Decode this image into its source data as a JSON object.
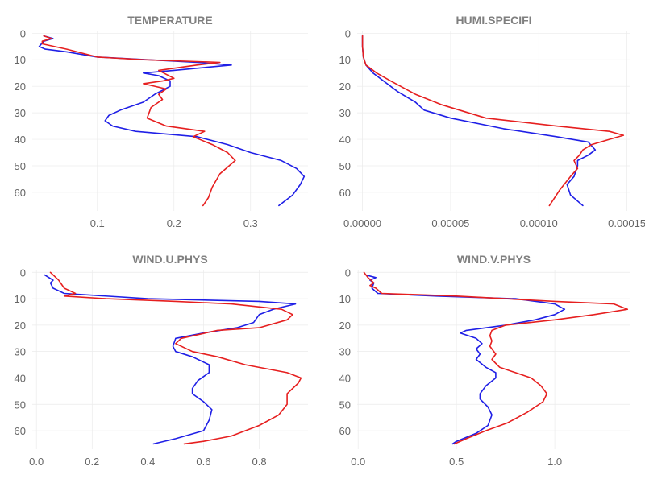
{
  "colors": {
    "series_a": "#1f1fe6",
    "series_b": "#e61f1f",
    "grid": "#ebebeb",
    "text": "#7f7f7f"
  },
  "chart_data": [
    {
      "type": "line",
      "title": "TEMPERATURE",
      "xlabel": "",
      "ylabel": "",
      "y_axis_reversed": true,
      "xlim": [
        0.015,
        0.375
      ],
      "ylim": [
        -1,
        67
      ],
      "x_ticks": [
        0.1,
        0.2,
        0.3
      ],
      "x_tick_labels": [
        "0.1",
        "0.2",
        "0.3"
      ],
      "y_ticks": [
        0,
        10,
        20,
        30,
        40,
        50,
        60
      ],
      "grid": true,
      "series": [
        {
          "color": "#1f1fe6",
          "points": [
            [
              0.03,
              1
            ],
            [
              0.042,
              2
            ],
            [
              0.03,
              3
            ],
            [
              0.024,
              5
            ],
            [
              0.032,
              6
            ],
            [
              0.06,
              7
            ],
            [
              0.1,
              9
            ],
            [
              0.23,
              11
            ],
            [
              0.275,
              12
            ],
            [
              0.2,
              14
            ],
            [
              0.16,
              15
            ],
            [
              0.18,
              16
            ],
            [
              0.195,
              18
            ],
            [
              0.195,
              20
            ],
            [
              0.175,
              23
            ],
            [
              0.16,
              26
            ],
            [
              0.13,
              29
            ],
            [
              0.115,
              31
            ],
            [
              0.11,
              33
            ],
            [
              0.12,
              35
            ],
            [
              0.15,
              37
            ],
            [
              0.23,
              39
            ],
            [
              0.27,
              42
            ],
            [
              0.3,
              45
            ],
            [
              0.34,
              48
            ],
            [
              0.36,
              51
            ],
            [
              0.37,
              54
            ],
            [
              0.365,
              57
            ],
            [
              0.355,
              61
            ],
            [
              0.337,
              65
            ]
          ]
        },
        {
          "color": "#e61f1f",
          "points": [
            [
              0.03,
              1
            ],
            [
              0.04,
              2
            ],
            [
              0.028,
              3
            ],
            [
              0.028,
              4
            ],
            [
              0.06,
              6
            ],
            [
              0.1,
              9
            ],
            [
              0.16,
              10
            ],
            [
              0.26,
              11
            ],
            [
              0.23,
              12
            ],
            [
              0.18,
              14
            ],
            [
              0.2,
              17
            ],
            [
              0.185,
              18
            ],
            [
              0.16,
              19
            ],
            [
              0.19,
              21
            ],
            [
              0.18,
              23
            ],
            [
              0.185,
              25
            ],
            [
              0.17,
              28
            ],
            [
              0.165,
              32
            ],
            [
              0.19,
              35
            ],
            [
              0.24,
              37
            ],
            [
              0.225,
              39
            ],
            [
              0.25,
              42
            ],
            [
              0.27,
              45
            ],
            [
              0.28,
              48
            ],
            [
              0.26,
              53
            ],
            [
              0.25,
              58
            ],
            [
              0.245,
              62
            ],
            [
              0.238,
              65
            ]
          ]
        }
      ]
    },
    {
      "type": "line",
      "title": "HUMI.SPECIFI",
      "xlabel": "",
      "ylabel": "",
      "y_axis_reversed": true,
      "xlim": [
        -3e-06,
        0.000152
      ],
      "ylim": [
        -1,
        67
      ],
      "x_ticks": [
        0,
        5e-05,
        0.0001,
        0.00015
      ],
      "x_tick_labels": [
        "0.00000",
        "0.00005",
        "0.00010",
        "0.00015"
      ],
      "y_ticks": [
        0,
        10,
        20,
        30,
        40,
        50,
        60
      ],
      "grid": true,
      "series": [
        {
          "color": "#1f1fe6",
          "points": [
            [
              0,
              1
            ],
            [
              0,
              5
            ],
            [
              5e-07,
              9
            ],
            [
              2e-06,
              12
            ],
            [
              6e-06,
              15
            ],
            [
              1.2e-05,
              18
            ],
            [
              2e-05,
              22
            ],
            [
              3e-05,
              26
            ],
            [
              3.5e-05,
              29
            ],
            [
              5e-05,
              32
            ],
            [
              8e-05,
              36
            ],
            [
              0.00011,
              39
            ],
            [
              0.000128,
              41
            ],
            [
              0.000132,
              44
            ],
            [
              0.000128,
              46
            ],
            [
              0.000122,
              48
            ],
            [
              0.000122,
              50
            ],
            [
              0.00012,
              54
            ],
            [
              0.000116,
              57
            ],
            [
              0.000118,
              61
            ],
            [
              0.000125,
              65
            ]
          ]
        },
        {
          "color": "#e61f1f",
          "points": [
            [
              0,
              1
            ],
            [
              0,
              5
            ],
            [
              5e-07,
              9
            ],
            [
              2e-06,
              12
            ],
            [
              8e-06,
              15
            ],
            [
              1.6e-05,
              18
            ],
            [
              3e-05,
              23
            ],
            [
              4.5e-05,
              27
            ],
            [
              7e-05,
              32
            ],
            [
              0.00011,
              35
            ],
            [
              0.00014,
              37
            ],
            [
              0.000148,
              38.5
            ],
            [
              0.00014,
              40
            ],
            [
              0.00013,
              42
            ],
            [
              0.000125,
              44
            ],
            [
              0.000123,
              46
            ],
            [
              0.00012,
              48
            ],
            [
              0.000122,
              51
            ],
            [
              0.000118,
              54
            ],
            [
              0.000112,
              59
            ],
            [
              0.000108,
              63
            ],
            [
              0.000106,
              65
            ]
          ]
        }
      ]
    },
    {
      "type": "line",
      "title": "WIND.U.PHYS",
      "xlabel": "",
      "ylabel": "",
      "y_axis_reversed": true,
      "xlim": [
        -0.015,
        0.975
      ],
      "ylim": [
        -1,
        67
      ],
      "x_ticks": [
        0,
        0.2,
        0.4,
        0.6,
        0.8
      ],
      "x_tick_labels": [
        "0.0",
        "0.2",
        "0.4",
        "0.6",
        "0.8"
      ],
      "y_ticks": [
        0,
        10,
        20,
        30,
        40,
        50,
        60
      ],
      "grid": true,
      "series": [
        {
          "color": "#1f1fe6",
          "points": [
            [
              0.03,
              1
            ],
            [
              0.06,
              3
            ],
            [
              0.05,
              4
            ],
            [
              0.06,
              6
            ],
            [
              0.08,
              7
            ],
            [
              0.1,
              8
            ],
            [
              0.4,
              10
            ],
            [
              0.8,
              11
            ],
            [
              0.93,
              12
            ],
            [
              0.85,
              14
            ],
            [
              0.8,
              16
            ],
            [
              0.78,
              19
            ],
            [
              0.72,
              21
            ],
            [
              0.6,
              23
            ],
            [
              0.5,
              25
            ],
            [
              0.49,
              28
            ],
            [
              0.5,
              30
            ],
            [
              0.56,
              32
            ],
            [
              0.62,
              35
            ],
            [
              0.62,
              38
            ],
            [
              0.58,
              41
            ],
            [
              0.56,
              44
            ],
            [
              0.56,
              46
            ],
            [
              0.6,
              49
            ],
            [
              0.63,
              52
            ],
            [
              0.62,
              56
            ],
            [
              0.6,
              60
            ],
            [
              0.5,
              63
            ],
            [
              0.42,
              65
            ]
          ]
        },
        {
          "color": "#e61f1f",
          "points": [
            [
              0.05,
              0
            ],
            [
              0.07,
              2
            ],
            [
              0.08,
              3
            ],
            [
              0.1,
              6
            ],
            [
              0.12,
              7
            ],
            [
              0.14,
              8
            ],
            [
              0.1,
              9
            ],
            [
              0.25,
              10
            ],
            [
              0.5,
              11
            ],
            [
              0.7,
              12
            ],
            [
              0.88,
              14
            ],
            [
              0.92,
              16
            ],
            [
              0.9,
              18
            ],
            [
              0.8,
              21
            ],
            [
              0.65,
              22
            ],
            [
              0.52,
              25
            ],
            [
              0.5,
              27
            ],
            [
              0.56,
              30
            ],
            [
              0.65,
              32
            ],
            [
              0.75,
              35
            ],
            [
              0.9,
              38
            ],
            [
              0.95,
              40
            ],
            [
              0.94,
              42
            ],
            [
              0.9,
              46
            ],
            [
              0.9,
              50
            ],
            [
              0.87,
              54
            ],
            [
              0.8,
              58
            ],
            [
              0.7,
              62
            ],
            [
              0.6,
              64
            ],
            [
              0.53,
              65
            ]
          ]
        }
      ]
    },
    {
      "type": "line",
      "title": "WIND.V.PHYS",
      "xlabel": "",
      "ylabel": "",
      "y_axis_reversed": true,
      "xlim": [
        -0.005,
        1.385
      ],
      "ylim": [
        -1,
        67
      ],
      "x_ticks": [
        0,
        0.5,
        1
      ],
      "x_tick_labels": [
        "0.0",
        "0.5",
        "1.0"
      ],
      "y_ticks": [
        0,
        10,
        20,
        30,
        40,
        50,
        60
      ],
      "grid": true,
      "series": [
        {
          "color": "#1f1fe6",
          "points": [
            [
              0.04,
              1
            ],
            [
              0.09,
              2
            ],
            [
              0.06,
              3
            ],
            [
              0.08,
              4
            ],
            [
              0.07,
              6
            ],
            [
              0.1,
              8
            ],
            [
              0.4,
              9
            ],
            [
              0.8,
              10
            ],
            [
              1.0,
              12
            ],
            [
              1.05,
              14
            ],
            [
              1.0,
              16
            ],
            [
              0.9,
              18
            ],
            [
              0.75,
              20
            ],
            [
              0.55,
              22
            ],
            [
              0.52,
              23
            ],
            [
              0.6,
              25
            ],
            [
              0.63,
              27
            ],
            [
              0.6,
              29
            ],
            [
              0.62,
              31
            ],
            [
              0.6,
              33
            ],
            [
              0.65,
              36
            ],
            [
              0.7,
              38
            ],
            [
              0.7,
              40
            ],
            [
              0.65,
              43
            ],
            [
              0.62,
              46
            ],
            [
              0.62,
              48
            ],
            [
              0.66,
              51
            ],
            [
              0.68,
              54
            ],
            [
              0.66,
              58
            ],
            [
              0.6,
              61
            ],
            [
              0.5,
              64
            ],
            [
              0.48,
              65
            ]
          ]
        },
        {
          "color": "#e61f1f",
          "points": [
            [
              0.03,
              0
            ],
            [
              0.05,
              2
            ],
            [
              0.08,
              4
            ],
            [
              0.06,
              5
            ],
            [
              0.09,
              6
            ],
            [
              0.12,
              8
            ],
            [
              0.5,
              9
            ],
            [
              1.0,
              11
            ],
            [
              1.3,
              12
            ],
            [
              1.37,
              14
            ],
            [
              1.2,
              16
            ],
            [
              1.0,
              18
            ],
            [
              0.75,
              20
            ],
            [
              0.68,
              22
            ],
            [
              0.67,
              24
            ],
            [
              0.68,
              26
            ],
            [
              0.67,
              28
            ],
            [
              0.7,
              31
            ],
            [
              0.68,
              33
            ],
            [
              0.72,
              36
            ],
            [
              0.8,
              38
            ],
            [
              0.88,
              40
            ],
            [
              0.93,
              43
            ],
            [
              0.96,
              46
            ],
            [
              0.94,
              49
            ],
            [
              0.86,
              53
            ],
            [
              0.76,
              57
            ],
            [
              0.65,
              60
            ],
            [
              0.55,
              63
            ],
            [
              0.49,
              65
            ]
          ]
        }
      ]
    }
  ]
}
